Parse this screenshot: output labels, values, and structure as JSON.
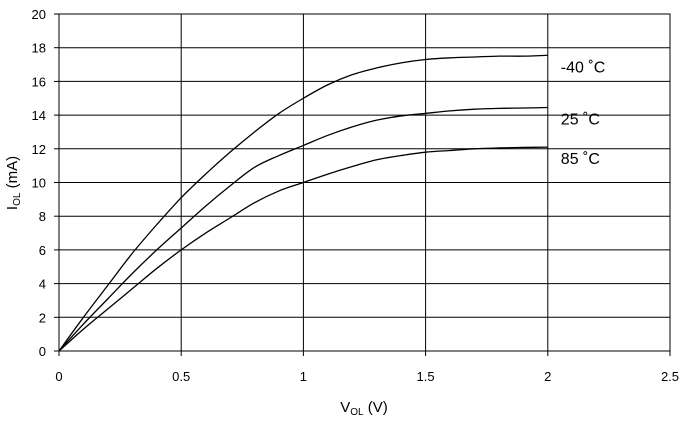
{
  "chart_data": {
    "type": "line",
    "title": "",
    "xlabel": "V",
    "xlabel_sub": "OL",
    "xlabel_unit": " (V)",
    "ylabel": "I",
    "ylabel_sub": "OL",
    "ylabel_unit": " (mA)",
    "xlim": [
      0,
      2.5
    ],
    "ylim": [
      0,
      20
    ],
    "x_ticks": [
      0,
      0.5,
      1,
      1.5,
      2,
      2.5
    ],
    "x_tick_labels": [
      "0",
      "0.5",
      "1",
      "1.5",
      "2",
      "2.5"
    ],
    "y_ticks": [
      0,
      2,
      4,
      6,
      8,
      10,
      12,
      14,
      16,
      18,
      20
    ],
    "y_tick_labels": [
      "0",
      "2",
      "4",
      "6",
      "8",
      "10",
      "12",
      "14",
      "16",
      "18",
      "20"
    ],
    "grid": true,
    "legend": "inline-right",
    "series": [
      {
        "name": "-40 ˚C",
        "x": [
          0,
          0.1,
          0.2,
          0.3,
          0.4,
          0.5,
          0.6,
          0.7,
          0.8,
          0.9,
          1.0,
          1.1,
          1.2,
          1.3,
          1.4,
          1.5,
          1.6,
          1.7,
          1.8,
          1.9,
          2.0
        ],
        "y": [
          0,
          2.0,
          3.9,
          5.8,
          7.5,
          9.1,
          10.5,
          11.8,
          13.0,
          14.1,
          15.0,
          15.8,
          16.4,
          16.8,
          17.1,
          17.3,
          17.4,
          17.45,
          17.5,
          17.5,
          17.55
        ]
      },
      {
        "name": "25 ˚C",
        "x": [
          0,
          0.1,
          0.2,
          0.3,
          0.4,
          0.5,
          0.6,
          0.7,
          0.8,
          0.9,
          1.0,
          1.1,
          1.2,
          1.3,
          1.4,
          1.5,
          1.6,
          1.7,
          1.8,
          1.9,
          2.0
        ],
        "y": [
          0,
          1.6,
          3.1,
          4.6,
          6.0,
          7.3,
          8.6,
          9.8,
          10.9,
          11.6,
          12.2,
          12.8,
          13.3,
          13.7,
          13.95,
          14.1,
          14.25,
          14.35,
          14.4,
          14.42,
          14.45
        ]
      },
      {
        "name": "85 ˚C",
        "x": [
          0,
          0.1,
          0.2,
          0.3,
          0.4,
          0.5,
          0.6,
          0.7,
          0.8,
          0.9,
          1.0,
          1.1,
          1.2,
          1.3,
          1.4,
          1.5,
          1.6,
          1.7,
          1.8,
          1.9,
          2.0
        ],
        "y": [
          0,
          1.3,
          2.5,
          3.7,
          4.9,
          6.0,
          7.0,
          7.9,
          8.8,
          9.5,
          10.0,
          10.5,
          10.95,
          11.35,
          11.6,
          11.8,
          11.9,
          12.0,
          12.05,
          12.08,
          12.1
        ]
      }
    ],
    "style": {
      "line_color": "#000000",
      "grid_color": "#000000",
      "frame_color": "#000000"
    }
  }
}
